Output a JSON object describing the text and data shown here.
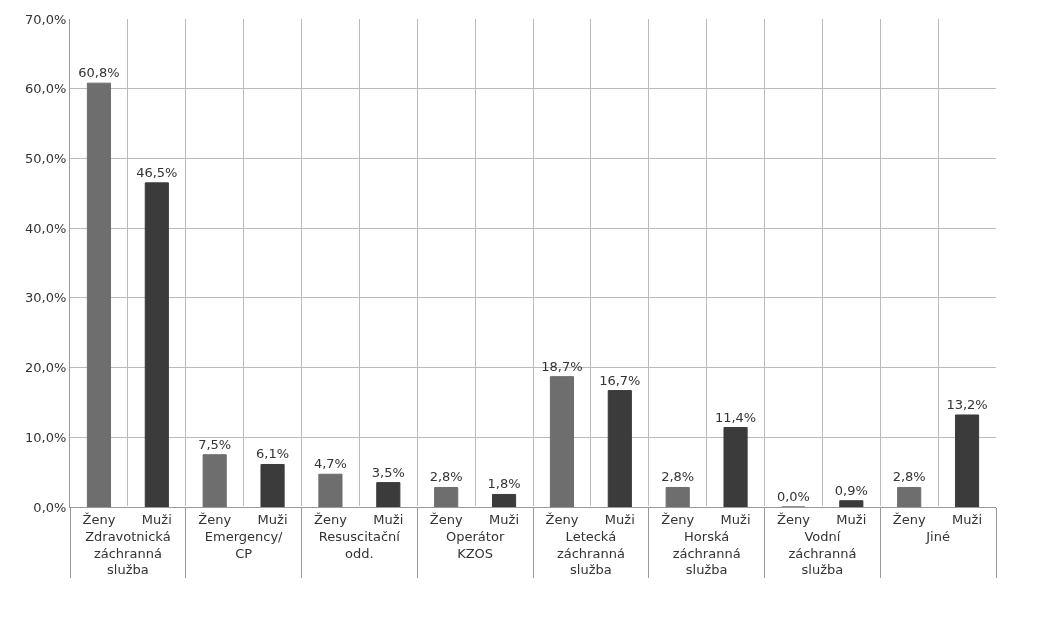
{
  "chart_data": {
    "type": "bar",
    "categories": [
      "Zdravotnická záchranná služba",
      "Emergency/ CP",
      "Resuscitační odd.",
      "Operátor KZOS",
      "Letecká záchranná služba",
      "Horská záchranná služba",
      "Vodní záchranná služba",
      "Jiné"
    ],
    "series": [
      {
        "name": "Ženy",
        "color": "#6e6e6e",
        "values": [
          60.8,
          7.5,
          4.7,
          2.8,
          18.7,
          2.8,
          0.0,
          2.8
        ],
        "value_labels": [
          "60,8%",
          "7,5%",
          "4,7%",
          "2,8%",
          "18,7%",
          "2,8%",
          "0,0%",
          "2,8%"
        ]
      },
      {
        "name": "Muži",
        "color": "#3b3b3b",
        "values": [
          46.5,
          6.1,
          3.5,
          1.8,
          16.7,
          11.4,
          0.9,
          13.2
        ],
        "value_labels": [
          "46,5%",
          "6,1%",
          "3,5%",
          "1,8%",
          "16,7%",
          "11,4%",
          "0,9%",
          "13,2%"
        ]
      }
    ],
    "ylim": [
      0,
      70
    ],
    "yticks": [
      {
        "value": 0,
        "label": "0,0%"
      },
      {
        "value": 10,
        "label": "10,0%"
      },
      {
        "value": 20,
        "label": "20,0%"
      },
      {
        "value": 30,
        "label": "30,0%"
      },
      {
        "value": 40,
        "label": "40,0%"
      },
      {
        "value": 50,
        "label": "50,0%"
      },
      {
        "value": 60,
        "label": "60,0%"
      },
      {
        "value": 70,
        "label": "70,0%"
      }
    ],
    "grid": true
  }
}
